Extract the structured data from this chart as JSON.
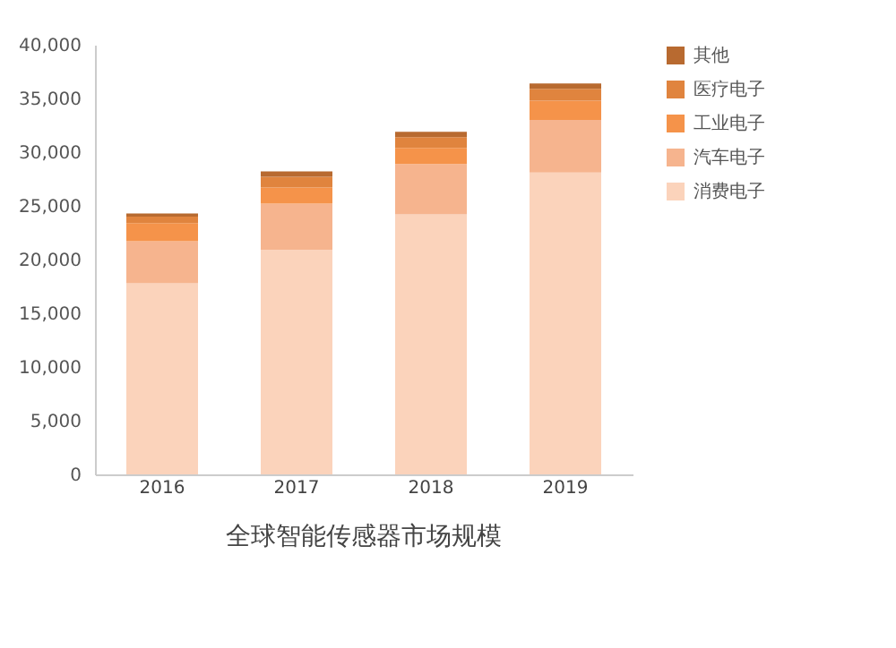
{
  "chart_data": {
    "type": "bar",
    "stacked": true,
    "title": "全球智能传感器市场规模",
    "categories": [
      "2016",
      "2017",
      "2018",
      "2019"
    ],
    "series": [
      {
        "name": "消费电子",
        "color": "#fbd3bb",
        "values": [
          17800,
          20900,
          24200,
          28100
        ]
      },
      {
        "name": "汽车电子",
        "color": "#f6b48e",
        "values": [
          3900,
          4300,
          4700,
          4900
        ]
      },
      {
        "name": "工业电子",
        "color": "#f5934a",
        "values": [
          1700,
          1500,
          1500,
          1800
        ]
      },
      {
        "name": "医疗电子",
        "color": "#e0843e",
        "values": [
          600,
          1000,
          1000,
          1100
        ]
      },
      {
        "name": "其他",
        "color": "#b86a30",
        "values": [
          300,
          500,
          500,
          500
        ]
      }
    ],
    "ylim": [
      0,
      40000
    ],
    "yticks": [
      0,
      {
        "value": 5000,
        "label": "5,000"
      },
      {
        "value": 10000,
        "label": "10,000"
      },
      {
        "value": 15000,
        "label": "15,000"
      },
      {
        "value": 20000,
        "label": "20,000"
      },
      {
        "value": 25000,
        "label": "25,000"
      },
      {
        "value": 30000,
        "label": "30,000"
      },
      {
        "value": 35000,
        "label": "35,000"
      },
      {
        "value": 40000,
        "label": "40,000"
      }
    ],
    "grid": false,
    "legend": "right"
  }
}
